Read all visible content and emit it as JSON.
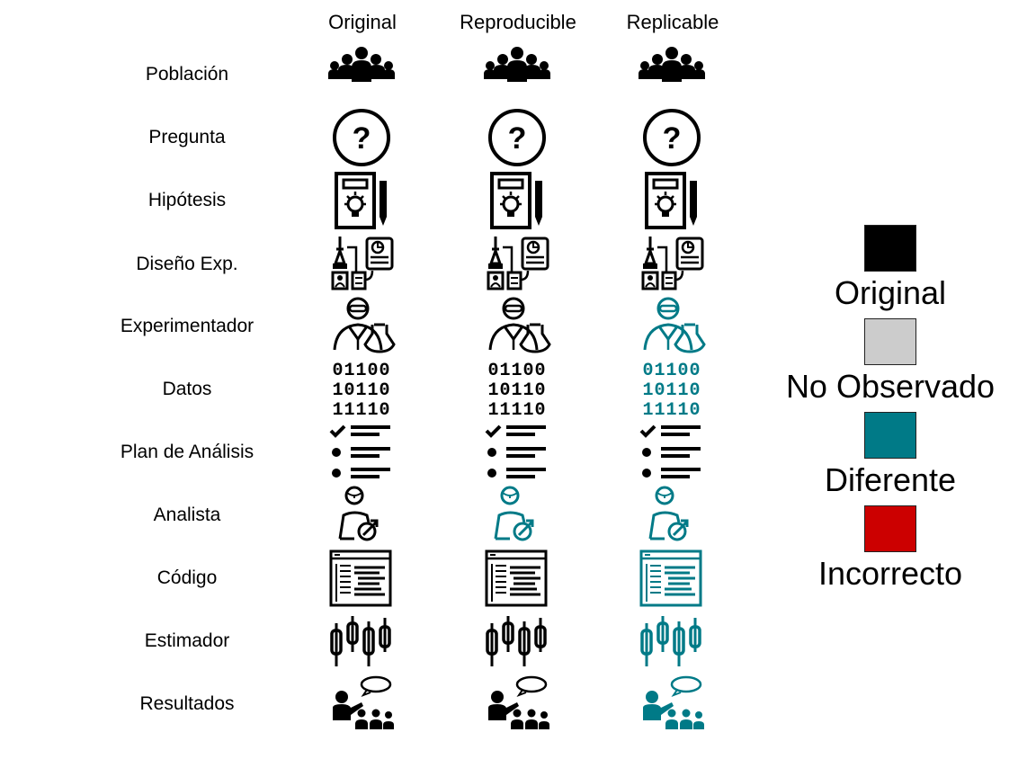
{
  "columns": [
    "Original",
    "Reproducible",
    "Replicable"
  ],
  "rows": [
    {
      "label": "Población",
      "icon": "people-group-icon",
      "status": [
        "original",
        "original",
        "original"
      ]
    },
    {
      "label": "Pregunta",
      "icon": "question-mark-icon",
      "status": [
        "original",
        "original",
        "original"
      ]
    },
    {
      "label": "Hipótesis",
      "icon": "hypothesis-clipboard-icon",
      "status": [
        "original",
        "original",
        "original"
      ]
    },
    {
      "label": "Diseño Exp.",
      "icon": "experiment-design-icon",
      "status": [
        "original",
        "original",
        "original"
      ]
    },
    {
      "label": "Experimentador",
      "icon": "scientist-icon",
      "status": [
        "original",
        "original",
        "diferente"
      ]
    },
    {
      "label": "Datos",
      "icon": "binary-data-icon",
      "status": [
        "original",
        "original",
        "diferente"
      ]
    },
    {
      "label": "Plan de Análisis",
      "icon": "checklist-icon",
      "status": [
        "original",
        "original",
        "original"
      ]
    },
    {
      "label": "Analista",
      "icon": "analyst-icon",
      "status": [
        "original",
        "diferente",
        "diferente"
      ]
    },
    {
      "label": "Código",
      "icon": "code-window-icon",
      "status": [
        "original",
        "original",
        "diferente"
      ]
    },
    {
      "label": "Estimador",
      "icon": "candlestick-icon",
      "status": [
        "original",
        "original",
        "diferente"
      ]
    },
    {
      "label": "Resultados",
      "icon": "presentation-icon",
      "status": [
        "original",
        "original",
        "diferente"
      ]
    }
  ],
  "binary_lines": [
    "01100",
    "10110",
    "11110"
  ],
  "legend": [
    {
      "key": "original",
      "label": "Original",
      "color": "#000000"
    },
    {
      "key": "no_observado",
      "label": "No Observado",
      "color": "#cccccc"
    },
    {
      "key": "diferente",
      "label": "Diferente",
      "color": "#007a87"
    },
    {
      "key": "incorrecto",
      "label": "Incorrecto",
      "color": "#cc0000"
    }
  ]
}
